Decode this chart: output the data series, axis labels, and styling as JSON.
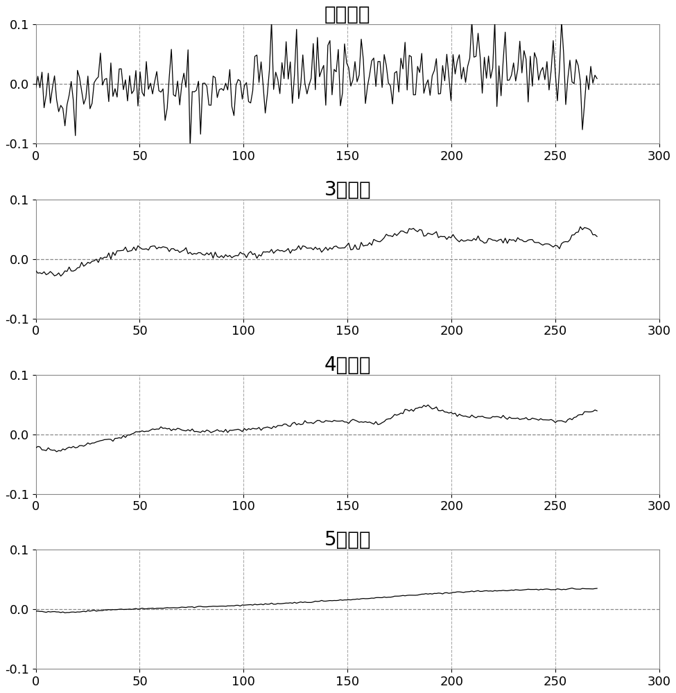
{
  "titles": [
    "原始数据",
    "3层分解",
    "4层分解",
    "5层分解"
  ],
  "xlim": [
    0,
    300
  ],
  "ylim": [
    -0.1,
    0.1
  ],
  "xticks": [
    0,
    50,
    100,
    150,
    200,
    250,
    300
  ],
  "yticks": [
    -0.1,
    0,
    0.1
  ],
  "grid_color": "#aaaaaa",
  "line_color": "#000000",
  "dashed_color": "#888888",
  "title_fontsize": 20,
  "tick_fontsize": 13,
  "figsize": [
    9.75,
    10.0
  ],
  "dpi": 100,
  "n_points": 270,
  "seed": 42
}
